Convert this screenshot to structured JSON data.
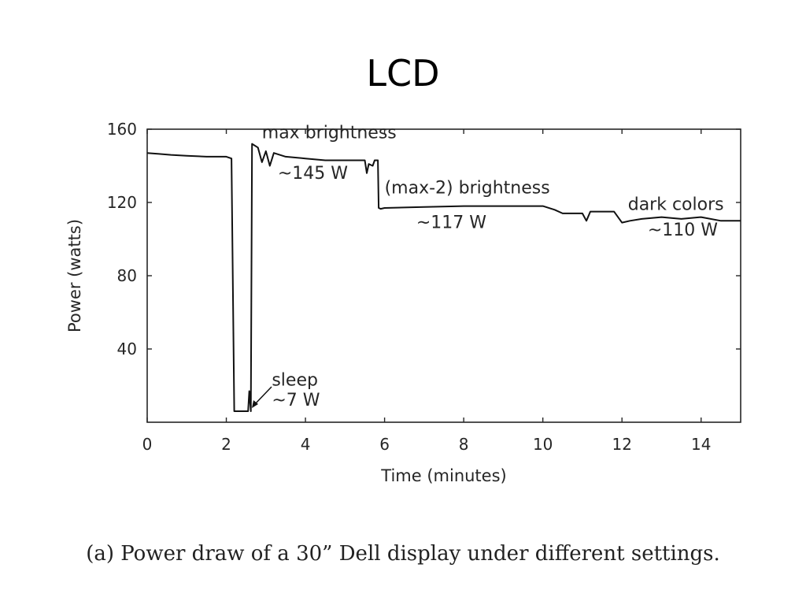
{
  "title": "LCD",
  "caption": "(a) Power draw of a 30” Dell display under different settings.",
  "chart_data": {
    "type": "line",
    "title": "LCD",
    "xlabel": "Time (minutes)",
    "ylabel": "Power (watts)",
    "xlim": [
      0,
      15
    ],
    "ylim": [
      0,
      160
    ],
    "xticks": [
      0,
      2,
      4,
      6,
      8,
      10,
      12,
      14
    ],
    "yticks": [
      40,
      80,
      120,
      160
    ],
    "grid": false,
    "series": [
      {
        "x": [
          0,
          0.3,
          0.6,
          1.0,
          1.5,
          2.0,
          2.13,
          2.2,
          2.3,
          2.55,
          2.58,
          2.62,
          2.65,
          2.8,
          2.9,
          3.0,
          3.1,
          3.2,
          3.5,
          4.0,
          4.5,
          5.0,
          5.5,
          5.55,
          5.6,
          5.7,
          5.75,
          5.83,
          5.85,
          5.9,
          6.0,
          7.0,
          8.0,
          9.0,
          10.0,
          10.3,
          10.5,
          10.9,
          11.0,
          11.1,
          11.2,
          11.7,
          11.8,
          12.0,
          12.2,
          12.5,
          13.0,
          13.5,
          14.0,
          14.5,
          15.0
        ],
        "y": [
          147,
          146.5,
          146,
          145.5,
          145,
          145,
          144,
          6,
          6,
          6,
          17,
          6,
          152,
          150,
          142,
          148,
          140,
          147,
          145,
          144,
          143,
          143,
          143,
          136,
          141,
          140,
          143,
          143,
          117,
          116.5,
          117,
          117.5,
          118,
          118,
          118,
          116,
          114,
          114,
          114,
          110,
          115,
          115,
          115,
          109,
          110,
          111,
          112,
          111,
          112,
          110,
          110
        ]
      }
    ],
    "annotations": [
      {
        "text": "max brightness",
        "x": 2.9,
        "y": 155
      },
      {
        "text": "~145 W",
        "x": 3.3,
        "y": 133
      },
      {
        "text": "(max-2) brightness",
        "x": 6.0,
        "y": 125
      },
      {
        "text": "~117 W",
        "x": 6.8,
        "y": 106
      },
      {
        "text": "dark colors",
        "x": 12.15,
        "y": 116
      },
      {
        "text": "~110 W",
        "x": 12.65,
        "y": 102
      },
      {
        "text": "sleep",
        "x": 3.15,
        "y": 20
      },
      {
        "text": "~7 W",
        "x": 3.15,
        "y": 9
      }
    ]
  }
}
